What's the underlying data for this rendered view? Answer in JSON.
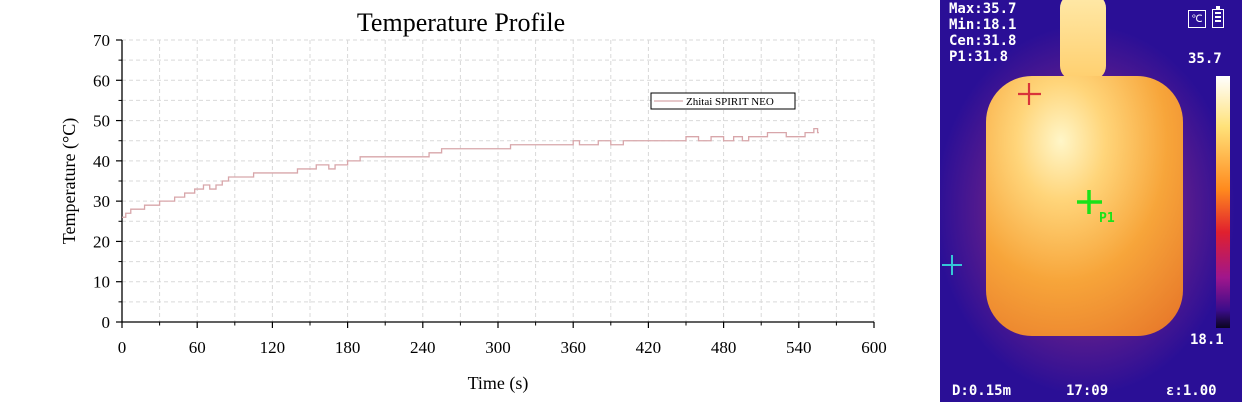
{
  "chart_data": {
    "type": "line",
    "title": "Temperature Profile",
    "xlabel": "Time (s)",
    "ylabel": "Temperature (°C)",
    "xlim": [
      0,
      600
    ],
    "ylim": [
      0,
      70
    ],
    "xticks": [
      0,
      60,
      120,
      180,
      240,
      300,
      360,
      420,
      480,
      540,
      600
    ],
    "yticks": [
      0,
      10,
      20,
      30,
      40,
      50,
      60,
      70
    ],
    "grid": true,
    "legend_position": "upper-right",
    "series": [
      {
        "name": "Zhitai SPIRIT NEO",
        "color": "#d8a6aa",
        "step": true,
        "x": [
          0,
          3,
          7,
          10,
          18,
          20,
          30,
          42,
          50,
          58,
          65,
          70,
          75,
          80,
          85,
          95,
          105,
          125,
          140,
          155,
          160,
          165,
          170,
          180,
          190,
          205,
          220,
          245,
          255,
          265,
          280,
          300,
          310,
          330,
          355,
          360,
          365,
          380,
          390,
          400,
          420,
          445,
          450,
          460,
          470,
          480,
          488,
          495,
          500,
          510,
          515,
          530,
          545,
          550,
          552,
          555
        ],
        "y": [
          26,
          27,
          28,
          28,
          29,
          29,
          30,
          31,
          32,
          33,
          34,
          33,
          34,
          35,
          36,
          36,
          37,
          37,
          38,
          39,
          39,
          38,
          39,
          40,
          41,
          41,
          41,
          42,
          43,
          43,
          43,
          43,
          44,
          44,
          44,
          45,
          44,
          45,
          44,
          45,
          45,
          45,
          46,
          45,
          46,
          45,
          46,
          45,
          46,
          46,
          47,
          46,
          47,
          47,
          48,
          47
        ]
      }
    ]
  },
  "thermal_panel": {
    "readouts": [
      "Max:35.7",
      "Min:18.1",
      "Cen:31.8",
      "P1:31.8"
    ],
    "scale_max": "35.7",
    "scale_min": "18.1",
    "distance": "D:0.15m",
    "time": "17:09",
    "emissivity": "ε:1.00",
    "point_label": "P1",
    "unit_icon_text": "℃",
    "icons": [
      "temperature-unit-icon",
      "battery-icon"
    ],
    "marker_colors": {
      "max": "#d8343a",
      "point": "#19e219",
      "min": "#35c6d6"
    }
  }
}
